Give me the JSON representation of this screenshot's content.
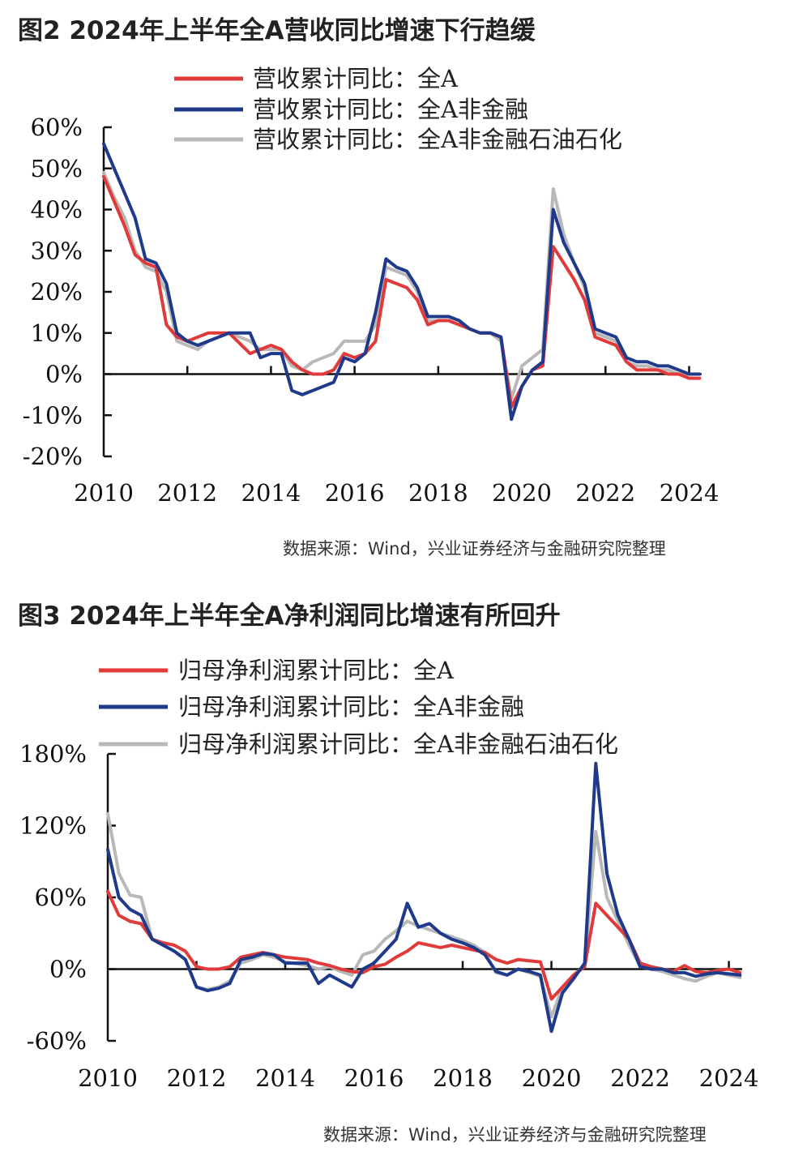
{
  "figures": [
    {
      "title": "图2  2024年上半年全A营收同比增速下行趋缓",
      "source": "数据来源：Wind，兴业证券经济与金融研究院整理"
    },
    {
      "title": "图3  2024年上半年全A净利润同比增速有所回升",
      "source": "数据来源：Wind，兴业证券经济与金融研究院整理"
    }
  ],
  "chart_data": [
    {
      "type": "line",
      "title": "图2  2024年上半年全A营收同比增速下行趋缓",
      "xlabel": "",
      "ylabel": "",
      "xlim": [
        2010,
        2024.3
      ],
      "ylim": [
        -20,
        60
      ],
      "y_ticks": [
        60,
        50,
        40,
        30,
        20,
        10,
        0,
        -10,
        -20
      ],
      "y_tick_labels": [
        "60%",
        "50%",
        "40%",
        "30%",
        "20%",
        "10%",
        "0%",
        "-10%",
        "-20%"
      ],
      "x_ticks": [
        2010,
        2012,
        2014,
        2016,
        2018,
        2020,
        2022,
        2024
      ],
      "x_tick_labels": [
        "2010",
        "2012",
        "2014",
        "2016",
        "2018",
        "2020",
        "2022",
        "2024"
      ],
      "legend_position": "top",
      "grid": false,
      "series": [
        {
          "name": "营收累计同比：全A",
          "color": "#e03a3a",
          "x": [
            2010.0,
            2010.25,
            2010.5,
            2010.75,
            2011.0,
            2011.25,
            2011.5,
            2011.75,
            2012.0,
            2012.25,
            2012.5,
            2012.75,
            2013.0,
            2013.5,
            2013.75,
            2014.0,
            2014.25,
            2014.5,
            2014.75,
            2015.0,
            2015.25,
            2015.5,
            2015.75,
            2016.0,
            2016.25,
            2016.5,
            2016.75,
            2017.0,
            2017.25,
            2017.5,
            2017.75,
            2018.0,
            2018.25,
            2018.5,
            2018.75,
            2019.0,
            2019.25,
            2019.5,
            2019.75,
            2020.0,
            2020.25,
            2020.5,
            2020.75,
            2021.0,
            2021.25,
            2021.5,
            2021.75,
            2022.0,
            2022.25,
            2022.5,
            2022.75,
            2023.0,
            2023.25,
            2023.5,
            2023.75,
            2024.0,
            2024.25
          ],
          "values": [
            48,
            42,
            36,
            29,
            27,
            26,
            12,
            9,
            8,
            9,
            10,
            10,
            10,
            5,
            6,
            7,
            6,
            3,
            1,
            0,
            0,
            1,
            5,
            4,
            5,
            8,
            23,
            22,
            21,
            18,
            12,
            13,
            13,
            12,
            11,
            10,
            10,
            9,
            -8,
            -3,
            1,
            2,
            31,
            27,
            23,
            18,
            9,
            8,
            7,
            3,
            1,
            1,
            1,
            0,
            0,
            -1,
            -1
          ]
        },
        {
          "name": "营收累计同比：全A非金融",
          "color": "#1f3a8a",
          "x": [
            2010.0,
            2010.25,
            2010.5,
            2010.75,
            2011.0,
            2011.25,
            2011.5,
            2011.75,
            2012.0,
            2012.25,
            2012.5,
            2012.75,
            2013.0,
            2013.5,
            2013.75,
            2014.0,
            2014.25,
            2014.5,
            2014.75,
            2015.0,
            2015.25,
            2015.5,
            2015.75,
            2016.0,
            2016.25,
            2016.5,
            2016.75,
            2017.0,
            2017.25,
            2017.5,
            2017.75,
            2018.0,
            2018.25,
            2018.5,
            2018.75,
            2019.0,
            2019.25,
            2019.5,
            2019.75,
            2020.0,
            2020.25,
            2020.5,
            2020.75,
            2021.0,
            2021.25,
            2021.5,
            2021.75,
            2022.0,
            2022.25,
            2022.5,
            2022.75,
            2023.0,
            2023.25,
            2023.5,
            2023.75,
            2024.0,
            2024.25
          ],
          "values": [
            56,
            50,
            44,
            38,
            28,
            27,
            22,
            10,
            8,
            7,
            8,
            9,
            10,
            10,
            4,
            5,
            5,
            -4,
            -5,
            -4,
            -3,
            -2,
            4,
            3,
            5,
            15,
            28,
            26,
            25,
            21,
            14,
            14,
            14,
            13,
            11,
            10,
            10,
            9,
            -11,
            -3,
            1,
            3,
            40,
            32,
            27,
            22,
            11,
            10,
            9,
            4,
            3,
            3,
            2,
            2,
            1,
            0,
            0
          ]
        },
        {
          "name": "营收累计同比：全A非金融石油石化",
          "color": "#b8b8b8",
          "x": [
            2010.0,
            2010.25,
            2010.5,
            2010.75,
            2011.0,
            2011.25,
            2011.5,
            2011.75,
            2012.0,
            2012.25,
            2012.5,
            2012.75,
            2013.0,
            2013.5,
            2013.75,
            2014.0,
            2014.25,
            2014.5,
            2014.75,
            2015.0,
            2015.25,
            2015.5,
            2015.75,
            2016.0,
            2016.25,
            2016.5,
            2016.75,
            2017.0,
            2017.25,
            2017.5,
            2017.75,
            2018.0,
            2018.25,
            2018.5,
            2018.75,
            2019.0,
            2019.25,
            2019.5,
            2019.75,
            2020.0,
            2020.25,
            2020.5,
            2020.75,
            2021.0,
            2021.25,
            2021.5,
            2021.75,
            2022.0,
            2022.25,
            2022.5,
            2022.75,
            2023.0,
            2023.25,
            2023.5,
            2023.75,
            2024.0,
            2024.25
          ],
          "values": [
            49,
            43,
            38,
            30,
            26,
            25,
            20,
            8,
            7,
            6,
            8,
            9,
            10,
            8,
            6,
            6,
            6,
            2,
            1,
            3,
            4,
            5,
            8,
            8,
            8,
            12,
            26,
            25,
            24,
            20,
            13,
            13,
            13,
            12,
            11,
            10,
            10,
            8,
            -6,
            2,
            4,
            6,
            45,
            34,
            27,
            21,
            10,
            9,
            8,
            3,
            2,
            2,
            1,
            1,
            0,
            0,
            0
          ]
        }
      ]
    },
    {
      "type": "line",
      "title": "图3  2024年上半年全A净利润同比增速有所回升",
      "xlabel": "",
      "ylabel": "",
      "xlim": [
        2010,
        2024.3
      ],
      "ylim": [
        -60,
        180
      ],
      "y_ticks": [
        180,
        120,
        60,
        0,
        -60
      ],
      "y_tick_labels": [
        "180%",
        "120%",
        "60%",
        "0%",
        "-60%"
      ],
      "x_ticks": [
        2010,
        2012,
        2014,
        2016,
        2018,
        2020,
        2022,
        2024
      ],
      "x_tick_labels": [
        "2010",
        "2012",
        "2014",
        "2016",
        "2018",
        "2020",
        "2022",
        "2024"
      ],
      "legend_position": "top",
      "grid": false,
      "series": [
        {
          "name": "归母净利润累计同比：全A",
          "color": "#e03a3a",
          "x": [
            2010.0,
            2010.25,
            2010.5,
            2010.75,
            2011.0,
            2011.25,
            2011.5,
            2011.75,
            2012.0,
            2012.25,
            2012.5,
            2012.75,
            2013.0,
            2013.25,
            2013.5,
            2013.75,
            2014.0,
            2014.5,
            2014.75,
            2015.0,
            2015.25,
            2015.5,
            2015.75,
            2016.0,
            2016.25,
            2016.5,
            2016.75,
            2017.0,
            2017.25,
            2017.5,
            2017.75,
            2018.0,
            2018.25,
            2018.5,
            2018.75,
            2019.0,
            2019.25,
            2019.5,
            2019.75,
            2020.0,
            2020.25,
            2020.5,
            2020.75,
            2021.0,
            2021.25,
            2021.5,
            2021.75,
            2022.0,
            2022.25,
            2022.5,
            2022.75,
            2023.0,
            2023.25,
            2023.5,
            2023.75,
            2024.0,
            2024.25
          ],
          "values": [
            65,
            45,
            40,
            38,
            25,
            22,
            20,
            15,
            2,
            0,
            0,
            2,
            10,
            12,
            14,
            12,
            10,
            8,
            5,
            3,
            0,
            -2,
            -3,
            2,
            4,
            10,
            15,
            22,
            20,
            18,
            20,
            18,
            16,
            14,
            8,
            5,
            8,
            7,
            6,
            -25,
            -15,
            -5,
            2,
            55,
            45,
            35,
            25,
            5,
            2,
            0,
            -2,
            3,
            -2,
            -3,
            -1,
            0,
            -3
          ]
        },
        {
          "name": "归母净利润累计同比：全A非金融",
          "color": "#1f3a8a",
          "x": [
            2010.0,
            2010.25,
            2010.5,
            2010.75,
            2011.0,
            2011.25,
            2011.5,
            2011.75,
            2012.0,
            2012.25,
            2012.5,
            2012.75,
            2013.0,
            2013.25,
            2013.5,
            2013.75,
            2014.0,
            2014.5,
            2014.75,
            2015.0,
            2015.25,
            2015.5,
            2015.75,
            2016.0,
            2016.25,
            2016.5,
            2016.75,
            2017.0,
            2017.25,
            2017.5,
            2017.75,
            2018.0,
            2018.25,
            2018.5,
            2018.75,
            2019.0,
            2019.25,
            2019.5,
            2019.75,
            2020.0,
            2020.25,
            2020.5,
            2020.75,
            2021.0,
            2021.25,
            2021.5,
            2021.75,
            2022.0,
            2022.25,
            2022.5,
            2022.75,
            2023.0,
            2023.25,
            2023.5,
            2023.75,
            2024.0,
            2024.25
          ],
          "values": [
            100,
            60,
            50,
            45,
            25,
            20,
            15,
            8,
            -15,
            -18,
            -16,
            -12,
            8,
            10,
            13,
            12,
            5,
            5,
            -12,
            -5,
            -10,
            -15,
            0,
            5,
            15,
            25,
            55,
            35,
            38,
            30,
            25,
            22,
            18,
            12,
            -2,
            -5,
            0,
            -2,
            -5,
            -52,
            -20,
            -8,
            5,
            172,
            80,
            45,
            25,
            2,
            0,
            0,
            -3,
            -3,
            -6,
            -4,
            -3,
            -4,
            -5
          ]
        },
        {
          "name": "归母净利润累计同比：全A非金融石油石化",
          "color": "#b8b8b8",
          "x": [
            2010.0,
            2010.25,
            2010.5,
            2010.75,
            2011.0,
            2011.25,
            2011.5,
            2011.75,
            2012.0,
            2012.25,
            2012.5,
            2012.75,
            2013.0,
            2013.25,
            2013.5,
            2013.75,
            2014.0,
            2014.5,
            2014.75,
            2015.0,
            2015.25,
            2015.5,
            2015.75,
            2016.0,
            2016.25,
            2016.5,
            2016.75,
            2017.0,
            2017.25,
            2017.5,
            2017.75,
            2018.0,
            2018.25,
            2018.5,
            2018.75,
            2019.0,
            2019.25,
            2019.5,
            2019.75,
            2020.0,
            2020.25,
            2020.5,
            2020.75,
            2021.0,
            2021.25,
            2021.5,
            2021.75,
            2022.0,
            2022.25,
            2022.5,
            2022.75,
            2023.0,
            2023.25,
            2023.5,
            2023.75,
            2024.0,
            2024.25
          ],
          "values": [
            130,
            80,
            62,
            60,
            25,
            20,
            15,
            8,
            -15,
            -17,
            -15,
            -10,
            5,
            8,
            12,
            10,
            6,
            3,
            0,
            2,
            -2,
            -5,
            12,
            15,
            25,
            32,
            40,
            36,
            33,
            30,
            27,
            24,
            20,
            14,
            -3,
            -5,
            0,
            -3,
            -6,
            -40,
            -15,
            -5,
            3,
            115,
            60,
            40,
            20,
            2,
            0,
            -2,
            -5,
            -8,
            -10,
            -6,
            -3,
            -5,
            -7
          ]
        }
      ]
    }
  ]
}
